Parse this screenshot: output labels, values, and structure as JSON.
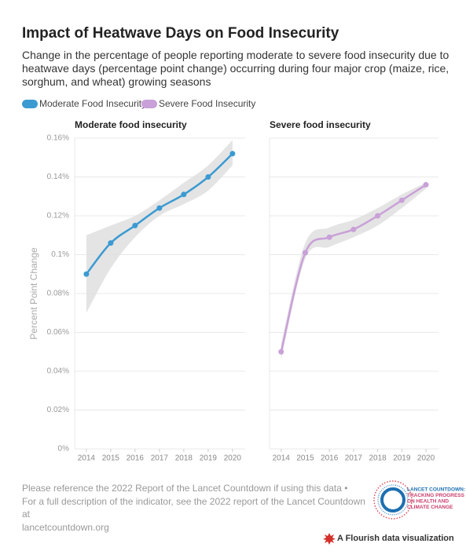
{
  "header": {
    "title": "Impact of Heatwave Days on Food Insecurity",
    "subtitle": "Change in the percentage of people reporting moderate to severe food insecurity due to heatwave days (percentage point change) occurring during four major crop (maize, rice, sorghum, and wheat) growing seasons"
  },
  "chart_data": [
    {
      "type": "line",
      "title": "Moderate food insecurity",
      "ylabel": "Percent Point Change",
      "x": [
        2014,
        2015,
        2016,
        2017,
        2018,
        2019,
        2020
      ],
      "xlim": [
        2013.52,
        2020.52
      ],
      "xticks": [
        2014,
        2015,
        2016,
        2017,
        2018,
        2019,
        2020
      ],
      "ylim": [
        0,
        0.16
      ],
      "yticks": [
        {
          "value": 0,
          "label": "0%"
        },
        {
          "value": 0.02,
          "label": "0.02%"
        },
        {
          "value": 0.04,
          "label": "0.04%"
        },
        {
          "value": 0.06,
          "label": "0.06%"
        },
        {
          "value": 0.08,
          "label": "0.08%"
        },
        {
          "value": 0.1,
          "label": "0.1%"
        },
        {
          "value": 0.12,
          "label": "0.12%"
        },
        {
          "value": 0.14,
          "label": "0.14%"
        },
        {
          "value": 0.16,
          "label": "0.16%"
        }
      ],
      "grid": true,
      "series": [
        {
          "name": "Moderate Food Insecurity",
          "color": "#3b9ad2",
          "values": [
            0.09,
            0.106,
            0.115,
            0.124,
            0.131,
            0.14,
            0.152
          ],
          "lower": [
            0.07,
            0.093,
            0.109,
            0.12,
            0.126,
            0.133,
            0.146
          ],
          "upper": [
            0.11,
            0.115,
            0.12,
            0.128,
            0.137,
            0.146,
            0.159
          ]
        }
      ]
    },
    {
      "type": "line",
      "title": "Severe food insecurity",
      "x": [
        2014,
        2015,
        2016,
        2017,
        2018,
        2019,
        2020
      ],
      "xlim": [
        2013.52,
        2020.52
      ],
      "xticks": [
        2014,
        2015,
        2016,
        2017,
        2018,
        2019,
        2020
      ],
      "ylim": [
        0,
        0.16
      ],
      "yticks": [
        0,
        0.02,
        0.04,
        0.06,
        0.08,
        0.1,
        0.12,
        0.14,
        0.16
      ],
      "grid": true,
      "series": [
        {
          "name": "Severe Food Insecurity",
          "color": "#c9a0d8",
          "values": [
            0.05,
            0.101,
            0.109,
            0.113,
            0.12,
            0.128,
            0.136
          ],
          "lower": [
            0.046,
            0.098,
            0.104,
            0.109,
            0.115,
            0.124,
            0.134
          ],
          "upper": [
            0.054,
            0.106,
            0.114,
            0.118,
            0.124,
            0.131,
            0.137
          ]
        }
      ]
    }
  ],
  "footer": {
    "notes": [
      "Please reference the 2022 Report of the Lancet Countdown if using this data •",
      "For a full description of the indicator, see the 2022 report of the Lancet Countdown at",
      "lancetcountdown.org"
    ],
    "logo": [
      "LANCET COUNTDOWN:",
      "TRACKING PROGRESS",
      "ON HEALTH AND",
      "CLIMATE CHANGE"
    ],
    "credit": "A Flourish data visualization"
  }
}
